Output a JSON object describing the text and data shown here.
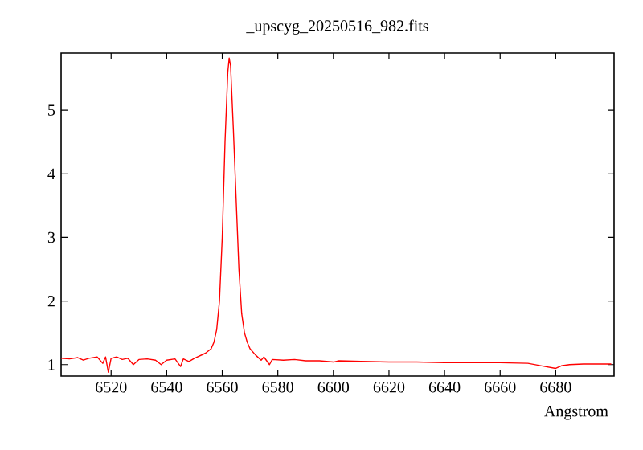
{
  "chart_data": {
    "type": "line",
    "title": "_upscyg_20250516_982.fits",
    "xlabel": "Angstrom",
    "xlim": [
      6502,
      6701
    ],
    "ylim": [
      0.82,
      5.9
    ],
    "xticks": [
      6520,
      6540,
      6560,
      6580,
      6600,
      6620,
      6640,
      6660,
      6680
    ],
    "yticks": [
      1,
      2,
      3,
      4,
      5
    ],
    "marker": "none",
    "line_style": "solid",
    "series": [
      {
        "color": "#ff0000",
        "x": [
          6502,
          6505,
          6508,
          6510,
          6512,
          6515,
          6517,
          6518,
          6519,
          6520,
          6522,
          6524,
          6526,
          6528,
          6530,
          6533,
          6536,
          6538,
          6540,
          6543,
          6545,
          6546,
          6548,
          6550,
          6552,
          6554,
          6556,
          6557,
          6558,
          6559,
          6560,
          6561,
          6562,
          6562.5,
          6563,
          6564,
          6565,
          6566,
          6567,
          6568,
          6569,
          6570,
          6572,
          6574,
          6575,
          6577,
          6578,
          6582,
          6586,
          6590,
          6595,
          6600,
          6602,
          6610,
          6620,
          6630,
          6640,
          6650,
          6660,
          6670,
          6675,
          6680,
          6682,
          6685,
          6690,
          6700
        ],
        "values": [
          1.1,
          1.09,
          1.11,
          1.07,
          1.1,
          1.12,
          1.02,
          1.12,
          0.88,
          1.1,
          1.12,
          1.08,
          1.1,
          1.0,
          1.08,
          1.09,
          1.07,
          1.0,
          1.07,
          1.09,
          0.97,
          1.09,
          1.05,
          1.1,
          1.14,
          1.18,
          1.25,
          1.35,
          1.55,
          2.0,
          3.0,
          4.5,
          5.6,
          5.82,
          5.7,
          4.7,
          3.6,
          2.5,
          1.8,
          1.5,
          1.35,
          1.25,
          1.15,
          1.07,
          1.12,
          1.0,
          1.08,
          1.07,
          1.08,
          1.06,
          1.06,
          1.04,
          1.06,
          1.05,
          1.04,
          1.04,
          1.03,
          1.03,
          1.03,
          1.02,
          0.98,
          0.94,
          0.98,
          1.0,
          1.01,
          1.01
        ]
      }
    ]
  }
}
